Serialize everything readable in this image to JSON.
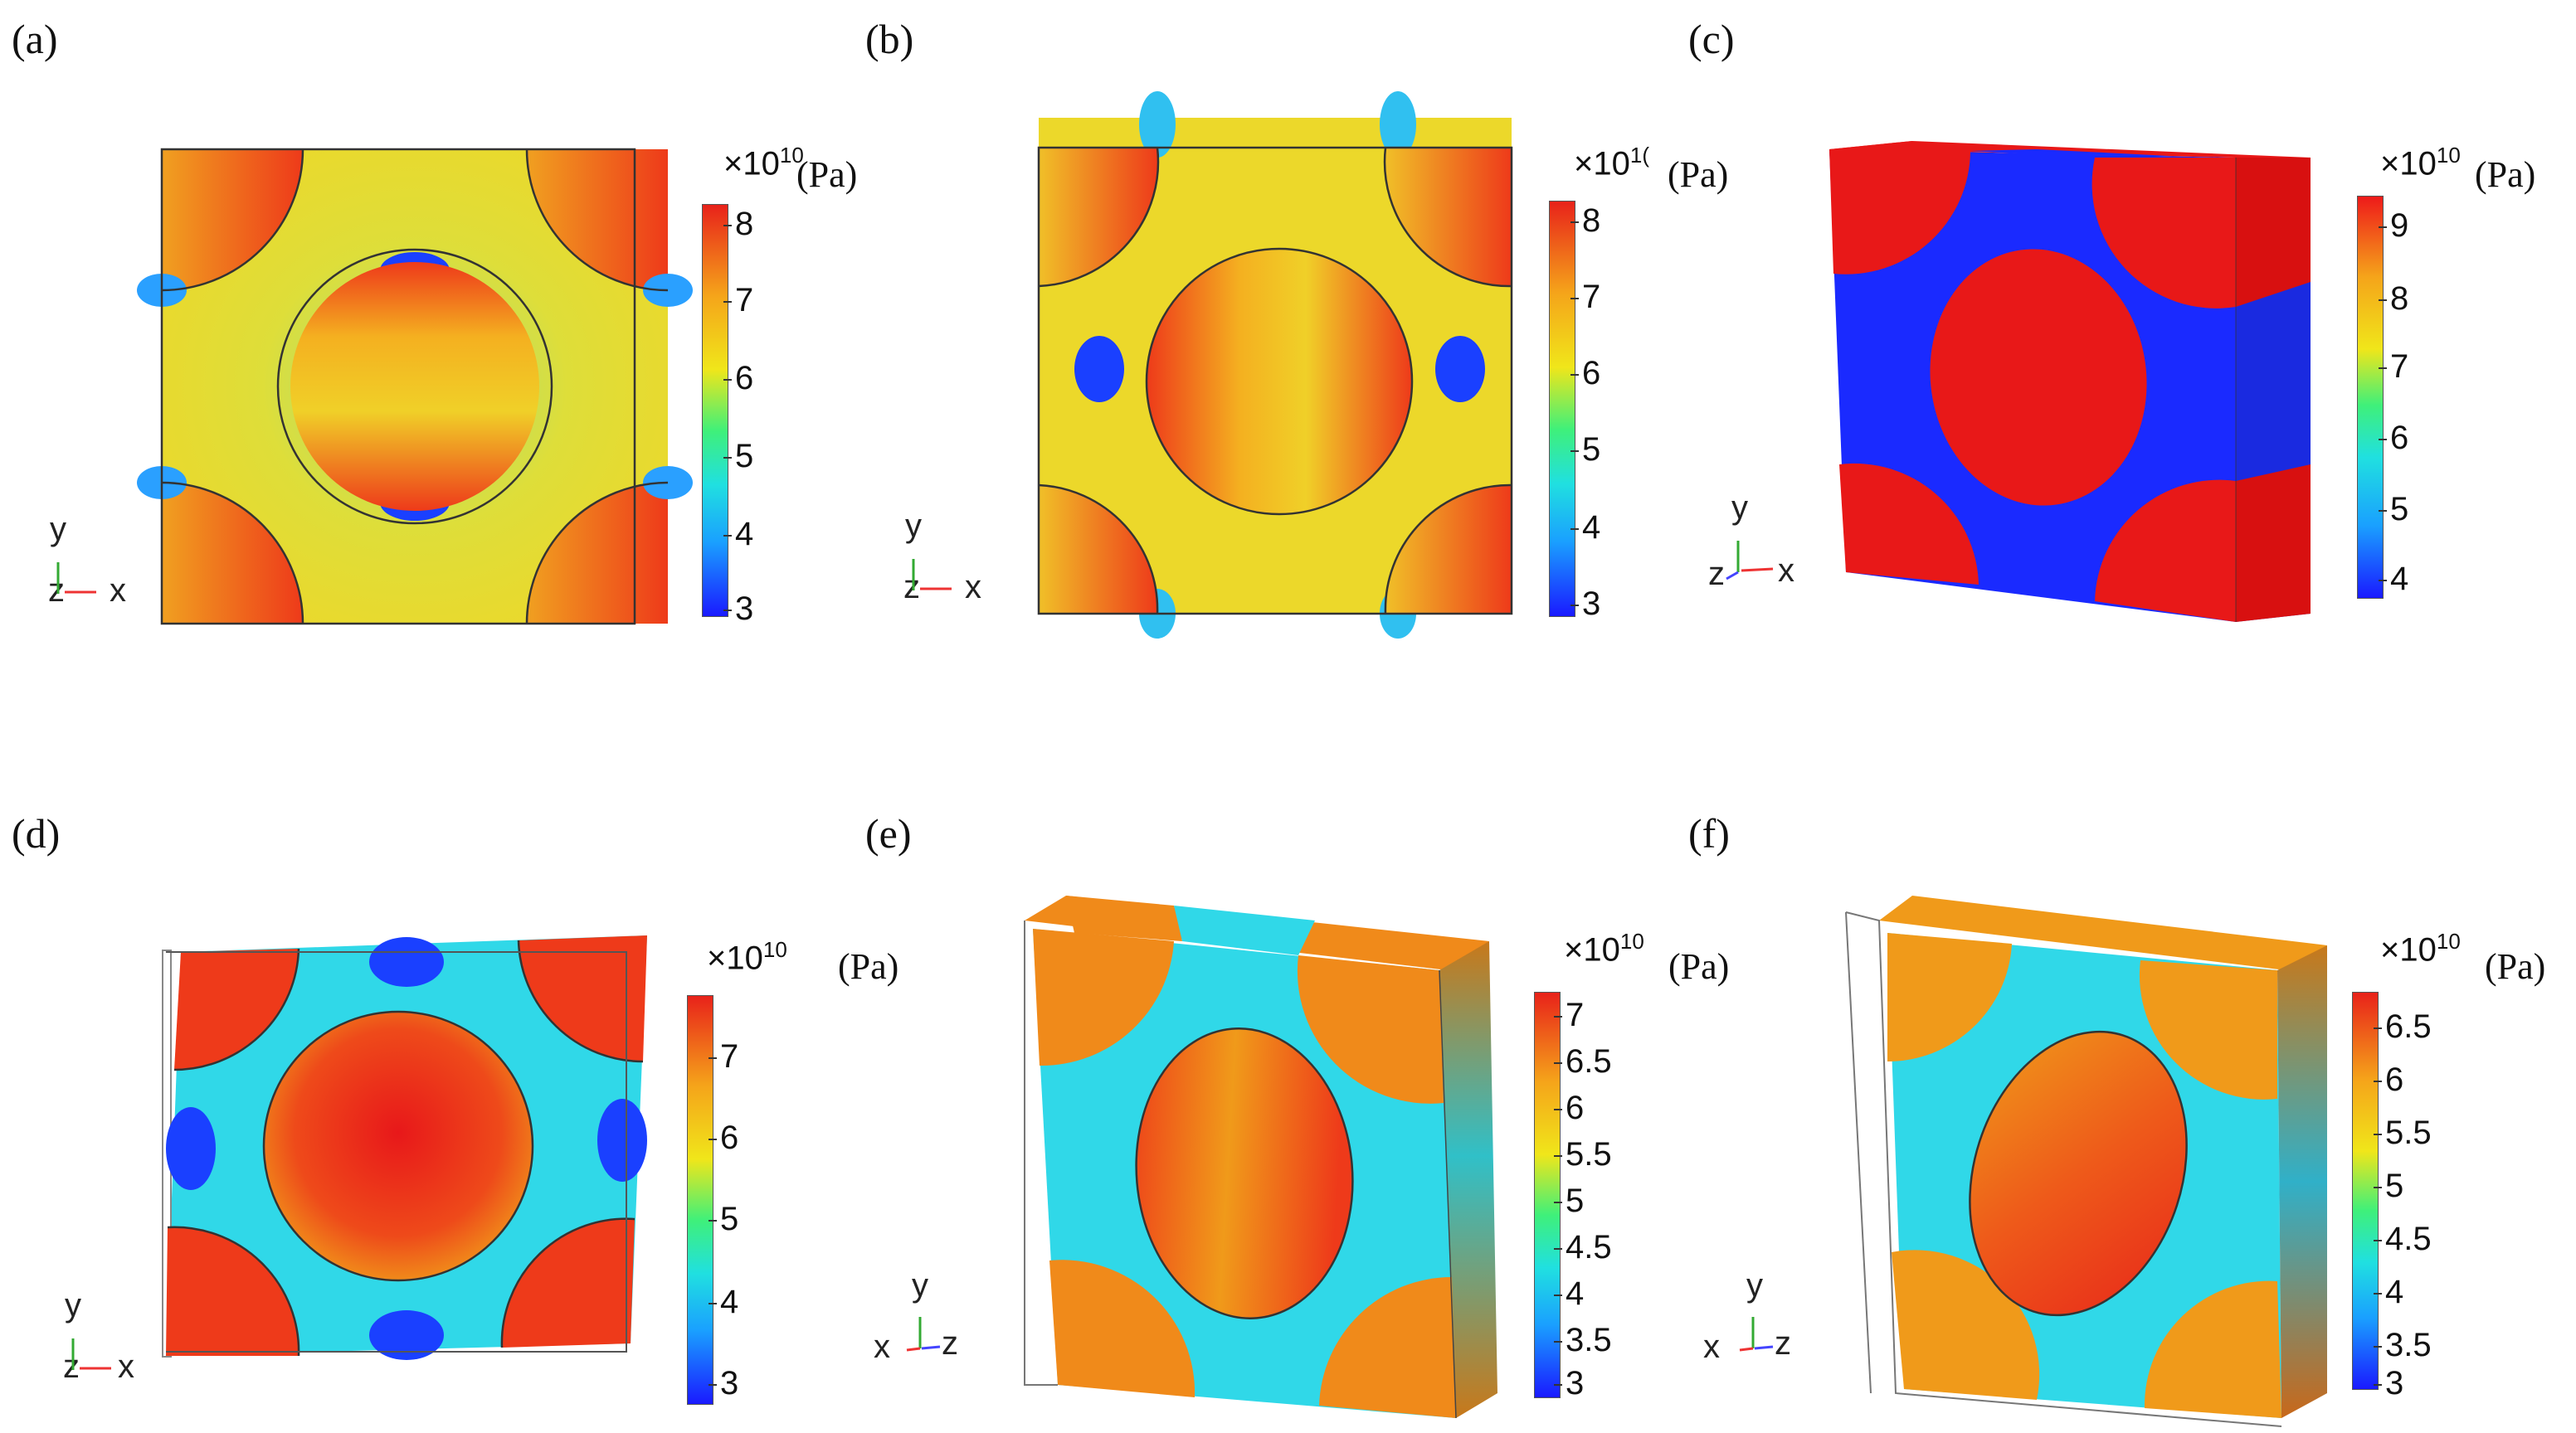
{
  "panels": [
    {
      "label": "(a)",
      "mult": "×10",
      "exp": "10",
      "unit": "(Pa)",
      "ticks": [
        "8",
        "7",
        "6",
        "5",
        "4",
        "3"
      ],
      "axes": {
        "up": "y",
        "left": "z",
        "right": "x"
      }
    },
    {
      "label": "(b)",
      "mult": "×10",
      "exp": "1(",
      "unit": "(Pa)",
      "ticks": [
        "8",
        "7",
        "6",
        "5",
        "4",
        "3"
      ],
      "axes": {
        "up": "y",
        "left": "z",
        "right": "x"
      }
    },
    {
      "label": "(c)",
      "mult": "×10",
      "exp": "10",
      "unit": "(Pa)",
      "ticks": [
        "9",
        "8",
        "7",
        "6",
        "5",
        "4"
      ],
      "axes": {
        "up": "y",
        "left": "z",
        "right": "x"
      }
    },
    {
      "label": "(d)",
      "mult": "×10",
      "exp": "10",
      "unit": "(Pa)",
      "ticks": [
        "7",
        "6",
        "5",
        "4",
        "3"
      ],
      "axes": {
        "up": "y",
        "left": "z",
        "right": "x"
      }
    },
    {
      "label": "(e)",
      "mult": "×10",
      "exp": "10",
      "unit": "(Pa)",
      "ticks": [
        "7",
        "6.5",
        "6",
        "5.5",
        "5",
        "4.5",
        "4",
        "3.5",
        "3"
      ],
      "axes": {
        "up": "y",
        "left": "x",
        "right": "z"
      }
    },
    {
      "label": "(f)",
      "mult": "×10",
      "exp": "10",
      "unit": "(Pa)",
      "ticks": [
        "6.5",
        "6",
        "5.5",
        "5",
        "4.5",
        "4",
        "3.5",
        "3"
      ],
      "axes": {
        "up": "y",
        "left": "x",
        "right": "z"
      }
    }
  ],
  "colors": {
    "red": "#ee1a1a",
    "orange": "#f08a1a",
    "yellow": "#ecd82a",
    "cyan": "#30d8e8",
    "blue": "#1a3aff",
    "green": "#70e070"
  }
}
